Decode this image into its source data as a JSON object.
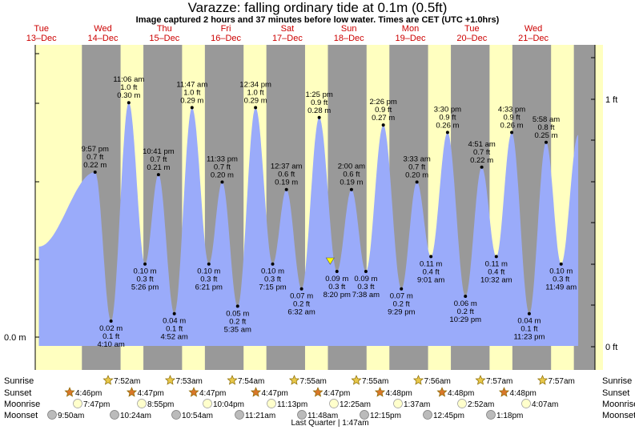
{
  "title": "Varazze: falling  ordinary tide at 0.1m (0.5ft)",
  "subtitle": "Image captured 2 hours and 37 minutes before low water. Times are CET (UTC +1.0hrs)",
  "colors": {
    "day": "#ffffc0",
    "night": "#999999",
    "water": "#9aabfa",
    "day_label": "#cc0000"
  },
  "chart_data": {
    "type": "area",
    "title": "Varazze: falling  ordinary tide at 0.1m (0.5ft)",
    "x_unit": "hours since Tue 13-Dec 00:00 CET",
    "left_axis": {
      "unit": "m",
      "ticks": [
        {
          "value": 0.0,
          "label": "0.0 m"
        }
      ]
    },
    "right_axis": {
      "unit": "ft",
      "ticks": [
        {
          "value": 0,
          "label": "0 ft"
        },
        {
          "value": 1,
          "label": "1 ft"
        }
      ]
    },
    "ylim_ft": [
      -0.05,
      1.2
    ],
    "xlim_hours": [
      0,
      218
    ],
    "days": [
      {
        "dow": "Tue",
        "date": "13–Dec"
      },
      {
        "dow": "Wed",
        "date": "14–Dec"
      },
      {
        "dow": "Thu",
        "date": "15–Dec"
      },
      {
        "dow": "Fri",
        "date": "16–Dec"
      },
      {
        "dow": "Sat",
        "date": "17–Dec"
      },
      {
        "dow": "Sun",
        "date": "18–Dec"
      },
      {
        "dow": "Mon",
        "date": "19–Dec"
      },
      {
        "dow": "Tue",
        "date": "20–Dec"
      },
      {
        "dow": "Wed",
        "date": "21–Dec"
      }
    ],
    "extremes": [
      {
        "time": "9:57 pm",
        "ft": "0.7 ft",
        "m": "0.22 m",
        "t": 21.95,
        "h": 0.7,
        "type": "high"
      },
      {
        "time": "4:10 am",
        "ft": "0.1 ft",
        "m": "0.02 m",
        "t": 28.17,
        "h": 0.1,
        "type": "low"
      },
      {
        "time": "11:06 am",
        "ft": "1.0 ft",
        "m": "0.30 m",
        "t": 35.1,
        "h": 0.98,
        "type": "high"
      },
      {
        "time": "5:26 pm",
        "ft": "0.3 ft",
        "m": "0.10 m",
        "t": 41.43,
        "h": 0.33,
        "type": "low"
      },
      {
        "time": "10:41 pm",
        "ft": "0.7 ft",
        "m": "0.21 m",
        "t": 46.68,
        "h": 0.69,
        "type": "high"
      },
      {
        "time": "4:52 am",
        "ft": "0.1 ft",
        "m": "0.04 m",
        "t": 52.87,
        "h": 0.13,
        "type": "low"
      },
      {
        "time": "11:47 am",
        "ft": "1.0 ft",
        "m": "0.29 m",
        "t": 59.78,
        "h": 0.96,
        "type": "high"
      },
      {
        "time": "6:21 pm",
        "ft": "0.3 ft",
        "m": "0.10 m",
        "t": 66.35,
        "h": 0.33,
        "type": "low"
      },
      {
        "time": "11:33 pm",
        "ft": "0.7 ft",
        "m": "0.20 m",
        "t": 71.55,
        "h": 0.66,
        "type": "high"
      },
      {
        "time": "5:35 am",
        "ft": "0.2 ft",
        "m": "0.05 m",
        "t": 77.58,
        "h": 0.16,
        "type": "low"
      },
      {
        "time": "12:34 pm",
        "ft": "1.0 ft",
        "m": "0.29 m",
        "t": 84.57,
        "h": 0.96,
        "type": "high"
      },
      {
        "time": "7:15 pm",
        "ft": "0.3 ft",
        "m": "0.10 m",
        "t": 91.25,
        "h": 0.33,
        "type": "low"
      },
      {
        "time": "12:37 am",
        "ft": "0.6 ft",
        "m": "0.19 m",
        "t": 96.62,
        "h": 0.63,
        "type": "high"
      },
      {
        "time": "6:32 am",
        "ft": "0.2 ft",
        "m": "0.07 m",
        "t": 102.53,
        "h": 0.23,
        "type": "low"
      },
      {
        "time": "1:25 pm",
        "ft": "0.9 ft",
        "m": "0.28 m",
        "t": 109.42,
        "h": 0.92,
        "type": "high"
      },
      {
        "time": "8:20 pm",
        "ft": "0.3 ft",
        "m": "0.09 m",
        "t": 116.33,
        "h": 0.3,
        "type": "low"
      },
      {
        "time": "2:00 am",
        "ft": "0.6 ft",
        "m": "0.19 m",
        "t": 122.0,
        "h": 0.63,
        "type": "high"
      },
      {
        "time": "7:38 am",
        "ft": "0.3 ft",
        "m": "0.09 m",
        "t": 127.63,
        "h": 0.3,
        "type": "low"
      },
      {
        "time": "2:26 pm",
        "ft": "0.9 ft",
        "m": "0.27 m",
        "t": 134.43,
        "h": 0.89,
        "type": "high"
      },
      {
        "time": "9:29 pm",
        "ft": "0.2 ft",
        "m": "0.07 m",
        "t": 141.48,
        "h": 0.23,
        "type": "low"
      },
      {
        "time": "3:33 am",
        "ft": "0.7 ft",
        "m": "0.20 m",
        "t": 147.55,
        "h": 0.66,
        "type": "high"
      },
      {
        "time": "9:01 am",
        "ft": "0.4 ft",
        "m": "0.11 m",
        "t": 153.02,
        "h": 0.36,
        "type": "low"
      },
      {
        "time": "3:30 pm",
        "ft": "0.9 ft",
        "m": "0.26 m",
        "t": 159.5,
        "h": 0.86,
        "type": "high"
      },
      {
        "time": "10:29 pm",
        "ft": "0.2 ft",
        "m": "0.06 m",
        "t": 166.48,
        "h": 0.2,
        "type": "low"
      },
      {
        "time": "4:51 am",
        "ft": "0.7 ft",
        "m": "0.22 m",
        "t": 172.85,
        "h": 0.72,
        "type": "high"
      },
      {
        "time": "10:32 am",
        "ft": "0.4 ft",
        "m": "0.11 m",
        "t": 178.53,
        "h": 0.36,
        "type": "low"
      },
      {
        "time": "4:33 pm",
        "ft": "0.9 ft",
        "m": "0.26 m",
        "t": 184.55,
        "h": 0.86,
        "type": "high"
      },
      {
        "time": "11:23 pm",
        "ft": "0.1 ft",
        "m": "0.04 m",
        "t": 191.38,
        "h": 0.13,
        "type": "low"
      },
      {
        "time": "5:58 am",
        "ft": "0.8 ft",
        "m": "0.25 m",
        "t": 197.97,
        "h": 0.82,
        "type": "high"
      },
      {
        "time": "11:49 am",
        "ft": "0.3 ft",
        "m": "0.10 m",
        "t": 203.82,
        "h": 0.33,
        "type": "low"
      }
    ],
    "curve_start": {
      "t": 0,
      "h": 0.4
    },
    "curve_end": {
      "t": 210.5,
      "h": 0.85
    },
    "now_marker_hours": 113.7
  },
  "legend_rows": {
    "labels": [
      "Sunrise",
      "Sunset",
      "Moonrise",
      "Moonset"
    ],
    "sunrise": [
      "7:52am",
      "7:53am",
      "7:54am",
      "7:55am",
      "7:55am",
      "7:56am",
      "7:57am",
      "7:57am"
    ],
    "sunset": [
      "4:46pm",
      "4:47pm",
      "4:47pm",
      "4:47pm",
      "4:47pm",
      "4:48pm",
      "4:48pm",
      "4:48pm"
    ],
    "moonrise": [
      "7:47pm",
      "8:55pm",
      "10:04pm",
      "11:13pm",
      "12:25am",
      "1:37am",
      "2:52am",
      "4:07am"
    ],
    "moonset": [
      "9:50am",
      "10:24am",
      "10:54am",
      "11:21am",
      "11:48am",
      "12:15pm",
      "12:45pm",
      "1:18pm"
    ],
    "moon_phase": "Last Quarter | 1:47am"
  }
}
